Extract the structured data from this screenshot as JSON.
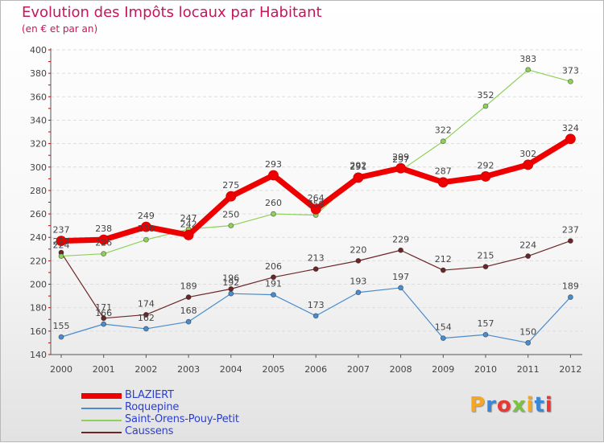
{
  "title": "Evolution des Impôts locaux par Habitant",
  "subtitle": "(en € et par an)",
  "logo": {
    "text": "Proxiti",
    "letter_colors": [
      "#f5a623",
      "#3a87d6",
      "#e53935",
      "#7cc242",
      "#f5a623",
      "#3a87d6",
      "#e53935"
    ]
  },
  "colors": {
    "title": "#c2185b",
    "legend_text": "#2a3fd0",
    "axis": "#555555",
    "tick_red": "#cc0000"
  },
  "chart_data": {
    "type": "line",
    "title": "Evolution des Impôts locaux par Habitant",
    "subtitle": "(en € et par an)",
    "xlabel": "",
    "ylabel": "",
    "ylim": [
      140,
      400
    ],
    "yticks": [
      140,
      160,
      180,
      200,
      220,
      240,
      260,
      280,
      300,
      320,
      340,
      360,
      380,
      400
    ],
    "grid": "horizontal dashed",
    "legend_position": "bottom-left",
    "categories": [
      "2000",
      "2001",
      "2002",
      "2003",
      "2004",
      "2005",
      "2006",
      "2007",
      "2008",
      "2009",
      "2010",
      "2011",
      "2012"
    ],
    "series": [
      {
        "name": "BLAZIERT",
        "color": "#ee0000",
        "values": [
          237,
          238,
          249,
          242,
          275,
          293,
          264,
          291,
          299,
          287,
          292,
          302,
          324
        ]
      },
      {
        "name": "Roquepine",
        "color": "#4a8ccc",
        "values": [
          155,
          166,
          162,
          168,
          192,
          191,
          173,
          193,
          197,
          154,
          157,
          150,
          189
        ]
      },
      {
        "name": "Saint-Orens-Pouy-Petit",
        "color": "#8ed05a",
        "values": [
          224,
          226,
          238,
          247,
          250,
          260,
          259,
          292,
          297,
          322,
          352,
          383,
          373
        ]
      },
      {
        "name": "Caussens",
        "color": "#6b2727",
        "values": [
          227,
          171,
          174,
          189,
          196,
          206,
          213,
          220,
          229,
          212,
          215,
          224,
          237
        ]
      }
    ]
  }
}
